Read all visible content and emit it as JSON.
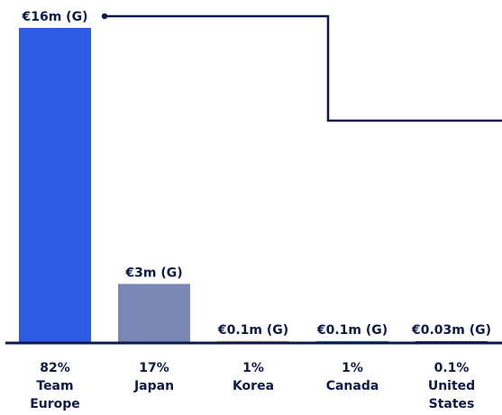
{
  "colors": {
    "axis": "#0e1a4a",
    "text": "#0e1a4a",
    "connector": "#0e1a4a"
  },
  "chart_data": {
    "type": "bar",
    "ylabel": "",
    "xlabel": "",
    "ylim": [
      0,
      16
    ],
    "grid": false,
    "legend": "none",
    "categories": [
      {
        "share": "82%",
        "name": [
          "Team",
          "Europe"
        ],
        "value": 16,
        "label": "€16m (G)",
        "color": "#2d5be3"
      },
      {
        "share": "17%",
        "name": [
          "Japan"
        ],
        "value": 3,
        "label": "€3m (G)",
        "color": "#7b87b5"
      },
      {
        "share": "1%",
        "name": [
          "Korea"
        ],
        "value": 0.1,
        "label": "€0.1m (G)",
        "color": "#e2a32b"
      },
      {
        "share": "1%",
        "name": [
          "Canada"
        ],
        "value": 0.1,
        "label": "€0.1m (G)",
        "color": "#1fa9a9"
      },
      {
        "share": "0.1%",
        "name": [
          "United",
          "States"
        ],
        "value": 0.03,
        "label": "€0.03m (G)",
        "color": "#1c2a6e"
      }
    ]
  }
}
